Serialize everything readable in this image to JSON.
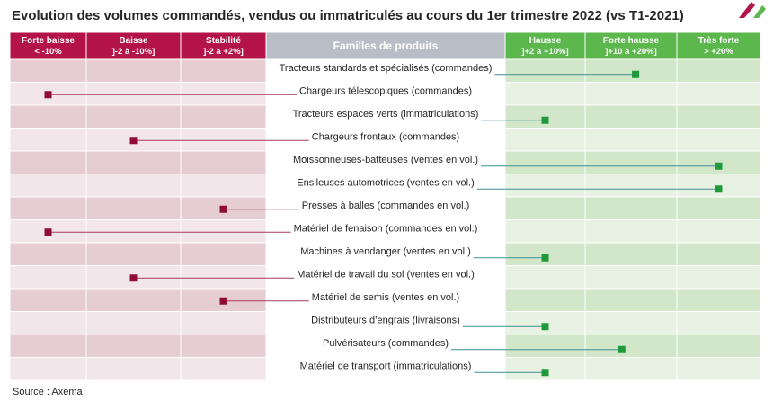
{
  "title": "Evolution des volumes commandés, vendus ou immatriculés au cours du 1er trimestre 2022 (vs T1-2021)",
  "source": "Source : Axema",
  "colors": {
    "neg_header": "#b4134a",
    "neg_band_dark": "#e6cdd3",
    "neg_band_light": "#f3e6ea",
    "neg_marker": "#8f0c3a",
    "neg_line": "#a53a5c",
    "mid_header": "#b9bec6",
    "pos_header": "#5cb84d",
    "pos_band_dark": "#d2e6ca",
    "pos_band_light": "#e8f2e3",
    "pos_marker": "#1e9a38",
    "pos_line": "#3e8f94"
  },
  "chart_data": {
    "type": "table",
    "columns": [
      {
        "key": "forte_baisse",
        "label": "Forte baisse",
        "range": "< -10%",
        "side": "neg"
      },
      {
        "key": "baisse",
        "label": "Baisse",
        "range": "]-2 à -10%]",
        "side": "neg"
      },
      {
        "key": "stabilite",
        "label": "Stabilité",
        "range": "]-2 à +2%]",
        "side": "neg"
      },
      {
        "key": "familles",
        "label": "Familles de produits",
        "range": "",
        "side": "mid"
      },
      {
        "key": "hausse",
        "label": "Hausse",
        "range": "]+2 à +10%]",
        "side": "pos"
      },
      {
        "key": "forte_hausse",
        "label": "Forte hausse",
        "range": "]+10 à +20%]",
        "side": "pos"
      },
      {
        "key": "tres_forte",
        "label": "Très forte",
        "range": "> +20%",
        "side": "pos"
      }
    ],
    "rows": [
      {
        "label": "Tracteurs standards et spécialisés (commandes)",
        "category": "forte_hausse",
        "position": 0.55
      },
      {
        "label": "Chargeurs télescopiques (commandes)",
        "category": "forte_baisse",
        "position": 0.5
      },
      {
        "label": "Tracteurs espaces verts (immatriculations)",
        "category": "hausse",
        "position": 0.5
      },
      {
        "label": "Chargeurs frontaux (commandes)",
        "category": "baisse",
        "position": 0.5
      },
      {
        "label": "Moissonneuses-batteuses (ventes en vol.)",
        "category": "tres_forte",
        "position": 0.5
      },
      {
        "label": "Ensileuses automotrices (ventes en vol.)",
        "category": "tres_forte",
        "position": 0.5
      },
      {
        "label": "Presses à balles (commandes en vol.)",
        "category": "stabilite",
        "position": 0.5
      },
      {
        "label": "Matériel de fenaison (commandes en vol.)",
        "category": "forte_baisse",
        "position": 0.5
      },
      {
        "label": "Machines à vendanger (ventes en vol.)",
        "category": "hausse",
        "position": 0.5
      },
      {
        "label": "Matériel de travail du sol (ventes en vol.)",
        "category": "baisse",
        "position": 0.5
      },
      {
        "label": "Matériel de semis (ventes en vol.)",
        "category": "stabilite",
        "position": 0.5
      },
      {
        "label": "Distributeurs d’engrais (livraisons)",
        "category": "hausse",
        "position": 0.5
      },
      {
        "label": "Pulvérisateurs (commandes)",
        "category": "forte_hausse",
        "position": 0.4
      },
      {
        "label": "Matériel de transport (immatriculations)",
        "category": "hausse",
        "position": 0.5
      }
    ]
  }
}
